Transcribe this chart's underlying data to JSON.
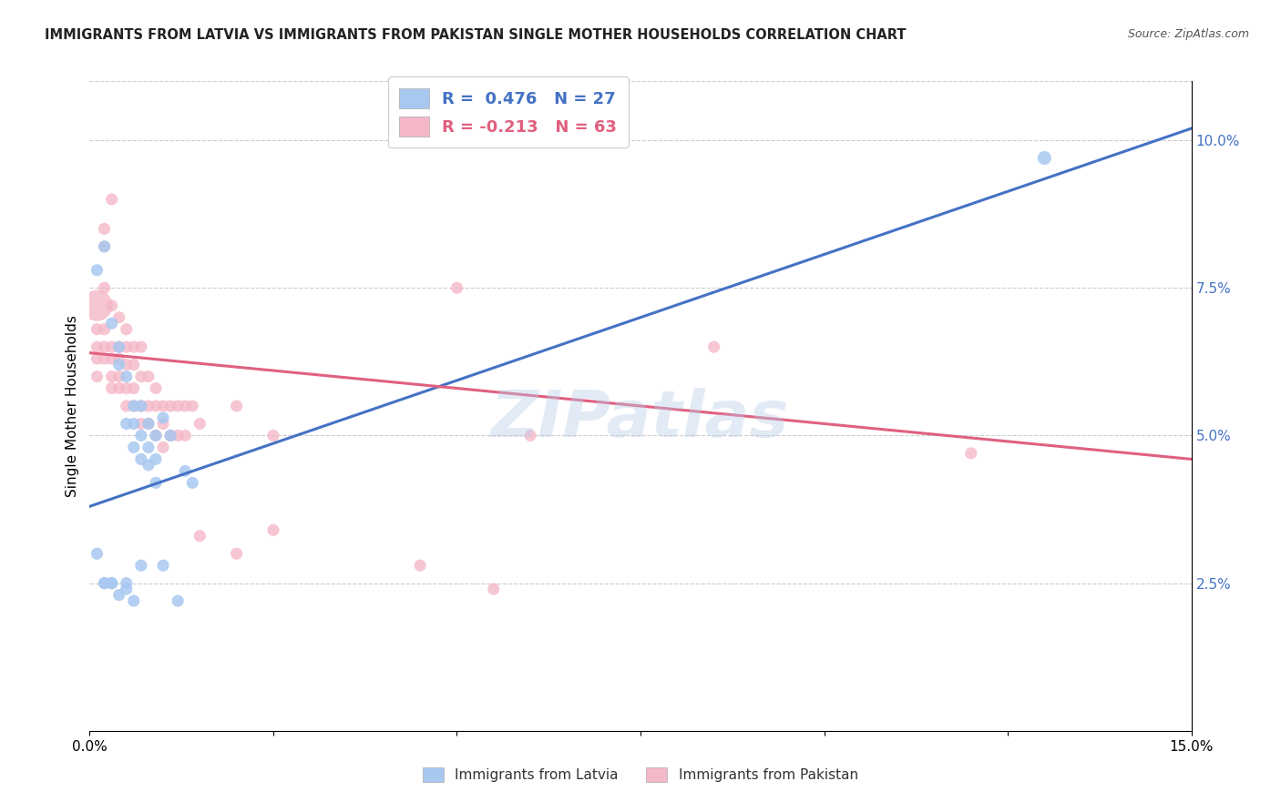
{
  "title": "IMMIGRANTS FROM LATVIA VS IMMIGRANTS FROM PAKISTAN SINGLE MOTHER HOUSEHOLDS CORRELATION CHART",
  "source": "Source: ZipAtlas.com",
  "ylabel": "Single Mother Households",
  "xlim": [
    0.0,
    0.15
  ],
  "ylim": [
    0.0,
    0.11
  ],
  "xtick_positions": [
    0.0,
    0.025,
    0.05,
    0.075,
    0.1,
    0.125,
    0.15
  ],
  "xticklabels": [
    "0.0%",
    "",
    "",
    "",
    "",
    "",
    "15.0%"
  ],
  "ytick_positions": [
    0.0,
    0.025,
    0.05,
    0.075,
    0.1
  ],
  "ytick_labels": [
    "",
    "2.5%",
    "5.0%",
    "7.5%",
    "10.0%"
  ],
  "watermark": "ZIPatlas",
  "blue_color": "#a8c8f0",
  "pink_color": "#f5b8c8",
  "blue_line_color": "#4472c4",
  "pink_line_color": "#e06080",
  "blue_line": [
    [
      0.0,
      0.038
    ],
    [
      0.15,
      0.102
    ]
  ],
  "pink_line": [
    [
      0.0,
      0.064
    ],
    [
      0.15,
      0.046
    ]
  ],
  "blue_scatter": [
    [
      0.001,
      0.078
    ],
    [
      0.002,
      0.082
    ],
    [
      0.003,
      0.069
    ],
    [
      0.004,
      0.062
    ],
    [
      0.004,
      0.065
    ],
    [
      0.005,
      0.06
    ],
    [
      0.005,
      0.052
    ],
    [
      0.006,
      0.055
    ],
    [
      0.006,
      0.052
    ],
    [
      0.006,
      0.048
    ],
    [
      0.007,
      0.055
    ],
    [
      0.007,
      0.05
    ],
    [
      0.007,
      0.046
    ],
    [
      0.008,
      0.052
    ],
    [
      0.008,
      0.048
    ],
    [
      0.008,
      0.045
    ],
    [
      0.009,
      0.05
    ],
    [
      0.009,
      0.046
    ],
    [
      0.009,
      0.042
    ],
    [
      0.01,
      0.053
    ],
    [
      0.011,
      0.05
    ],
    [
      0.013,
      0.044
    ],
    [
      0.014,
      0.042
    ],
    [
      0.001,
      0.03
    ],
    [
      0.002,
      0.025
    ],
    [
      0.002,
      0.025
    ],
    [
      0.003,
      0.025
    ],
    [
      0.003,
      0.025
    ],
    [
      0.004,
      0.023
    ],
    [
      0.005,
      0.024
    ],
    [
      0.005,
      0.025
    ],
    [
      0.006,
      0.022
    ],
    [
      0.007,
      0.028
    ],
    [
      0.01,
      0.028
    ],
    [
      0.012,
      0.022
    ],
    [
      0.13,
      0.097
    ]
  ],
  "blue_sizes": [
    90,
    90,
    90,
    90,
    90,
    90,
    90,
    90,
    90,
    90,
    90,
    90,
    90,
    90,
    90,
    90,
    90,
    90,
    90,
    90,
    90,
    90,
    90,
    90,
    90,
    90,
    90,
    90,
    90,
    90,
    90,
    90,
    90,
    90,
    90,
    120
  ],
  "pink_scatter": [
    [
      0.001,
      0.072
    ],
    [
      0.001,
      0.068
    ],
    [
      0.001,
      0.065
    ],
    [
      0.001,
      0.063
    ],
    [
      0.001,
      0.06
    ],
    [
      0.002,
      0.085
    ],
    [
      0.002,
      0.082
    ],
    [
      0.002,
      0.075
    ],
    [
      0.002,
      0.068
    ],
    [
      0.002,
      0.065
    ],
    [
      0.002,
      0.063
    ],
    [
      0.003,
      0.09
    ],
    [
      0.003,
      0.072
    ],
    [
      0.003,
      0.065
    ],
    [
      0.003,
      0.063
    ],
    [
      0.003,
      0.06
    ],
    [
      0.003,
      0.058
    ],
    [
      0.004,
      0.07
    ],
    [
      0.004,
      0.065
    ],
    [
      0.004,
      0.063
    ],
    [
      0.004,
      0.06
    ],
    [
      0.004,
      0.058
    ],
    [
      0.005,
      0.068
    ],
    [
      0.005,
      0.065
    ],
    [
      0.005,
      0.062
    ],
    [
      0.005,
      0.058
    ],
    [
      0.005,
      0.055
    ],
    [
      0.006,
      0.065
    ],
    [
      0.006,
      0.062
    ],
    [
      0.006,
      0.058
    ],
    [
      0.006,
      0.055
    ],
    [
      0.007,
      0.065
    ],
    [
      0.007,
      0.06
    ],
    [
      0.007,
      0.055
    ],
    [
      0.007,
      0.052
    ],
    [
      0.008,
      0.06
    ],
    [
      0.008,
      0.055
    ],
    [
      0.008,
      0.052
    ],
    [
      0.009,
      0.058
    ],
    [
      0.009,
      0.055
    ],
    [
      0.009,
      0.05
    ],
    [
      0.01,
      0.055
    ],
    [
      0.01,
      0.052
    ],
    [
      0.01,
      0.048
    ],
    [
      0.011,
      0.055
    ],
    [
      0.011,
      0.05
    ],
    [
      0.012,
      0.055
    ],
    [
      0.012,
      0.05
    ],
    [
      0.013,
      0.055
    ],
    [
      0.013,
      0.05
    ],
    [
      0.014,
      0.055
    ],
    [
      0.015,
      0.052
    ],
    [
      0.02,
      0.055
    ],
    [
      0.025,
      0.05
    ],
    [
      0.05,
      0.075
    ],
    [
      0.085,
      0.065
    ],
    [
      0.06,
      0.05
    ],
    [
      0.12,
      0.047
    ],
    [
      0.015,
      0.033
    ],
    [
      0.02,
      0.03
    ],
    [
      0.025,
      0.034
    ],
    [
      0.045,
      0.028
    ],
    [
      0.055,
      0.024
    ]
  ],
  "pink_sizes": [
    600,
    90,
    90,
    90,
    90,
    90,
    90,
    90,
    90,
    90,
    90,
    90,
    90,
    90,
    90,
    90,
    90,
    90,
    90,
    90,
    90,
    90,
    90,
    90,
    90,
    90,
    90,
    90,
    90,
    90,
    90,
    90,
    90,
    90,
    90,
    90,
    90,
    90,
    90,
    90,
    90,
    90,
    90,
    90,
    90,
    90,
    90,
    90,
    90,
    90,
    90,
    90,
    90,
    90,
    90,
    90,
    90,
    90,
    90,
    90,
    90,
    90,
    90
  ],
  "background_color": "#ffffff",
  "grid_color": "#cccccc"
}
